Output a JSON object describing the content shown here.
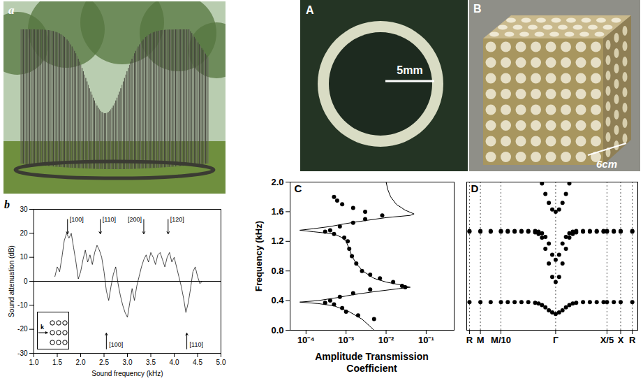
{
  "images": [
    {
      "panel": "a"
    },
    {
      "panel": "A",
      "scale_bar": "5mm"
    },
    {
      "panel": "B",
      "scale_bar": "6cm"
    }
  ],
  "chart_data": [
    {
      "panel": "b",
      "type": "line",
      "x_label": "Sound frequency (kHz)",
      "y_label": "Sound attenuation (dB)",
      "x": [
        1.45,
        1.5,
        1.55,
        1.6,
        1.65,
        1.7,
        1.75,
        1.8,
        1.85,
        1.9,
        1.95,
        2.0,
        2.05,
        2.1,
        2.15,
        2.2,
        2.25,
        2.3,
        2.35,
        2.4,
        2.45,
        2.5,
        2.55,
        2.6,
        2.65,
        2.7,
        2.75,
        2.8,
        2.85,
        2.9,
        2.95,
        3.0,
        3.05,
        3.1,
        3.15,
        3.2,
        3.25,
        3.3,
        3.35,
        3.4,
        3.45,
        3.5,
        3.55,
        3.6,
        3.65,
        3.7,
        3.75,
        3.8,
        3.85,
        3.9,
        3.95,
        4.0,
        4.05,
        4.1,
        4.15,
        4.2,
        4.25,
        4.3,
        4.35,
        4.4,
        4.45,
        4.5,
        4.55,
        4.6
      ],
      "values": [
        2,
        6,
        4,
        10,
        17,
        20,
        18,
        20,
        14,
        8,
        1,
        4,
        9,
        13,
        8,
        11,
        7,
        12,
        15,
        13,
        10,
        4,
        -4,
        -8,
        -2,
        3,
        6,
        -1,
        -6,
        -10,
        -13,
        -15,
        -9,
        -3,
        -8,
        -2,
        2,
        6,
        9,
        11,
        8,
        12,
        10,
        7,
        11,
        12,
        9,
        6,
        10,
        12,
        8,
        10,
        6,
        2,
        -2,
        -7,
        -13,
        -9,
        -3,
        4,
        6,
        2,
        -1,
        0
      ],
      "color": "#000000",
      "xlim": [
        1.0,
        5.0
      ],
      "xticks": [
        {
          "value": 1,
          "label": "1.0"
        },
        1.5,
        {
          "value": 2,
          "label": "2.0"
        },
        2.5,
        {
          "value": 3,
          "label": "3.0"
        },
        3.5,
        {
          "value": 4,
          "label": "4.0"
        },
        4.5,
        {
          "value": 5,
          "label": "5.0"
        }
      ],
      "ylim": [
        -30,
        30
      ],
      "yticks": [
        -30,
        -20,
        -10,
        0,
        10,
        20,
        30
      ],
      "hline": 0,
      "annotations": [
        {
          "text": "[100]",
          "x": 1.72,
          "direction": "down"
        },
        {
          "text": "[110]",
          "x": 2.42,
          "direction": "down"
        },
        {
          "text": "[200]",
          "x": 3.35,
          "direction": "down"
        },
        {
          "text": "[120]",
          "x": 3.87,
          "direction": "down"
        },
        {
          "text": "[100]",
          "x": 2.55,
          "direction": "up"
        },
        {
          "text": "[110]",
          "x": 4.27,
          "direction": "up"
        }
      ],
      "inset": {
        "label": "k"
      }
    },
    {
      "panel": "C",
      "type": "scatter",
      "x_label": "Amplitude Transmission Coefficient",
      "y_label": "Frequency (kHz)",
      "log": "x",
      "xlim": [
        4e-05,
        0.5
      ],
      "xticks": [
        {
          "value": 0.0001,
          "label": "10⁻⁴"
        },
        {
          "value": 0.001,
          "label": "10⁻³"
        },
        {
          "value": 0.01,
          "label": "10⁻²"
        },
        {
          "value": 0.1,
          "label": "10⁻¹"
        }
      ],
      "ylim": [
        0,
        2
      ],
      "yticks": [
        {
          "value": 0,
          "label": "0.0"
        },
        0.4,
        0.8,
        1.2,
        1.6,
        {
          "value": 2,
          "label": "2.0"
        }
      ],
      "series": [
        {
          "type": "scatter",
          "marker": "circle",
          "color": "#000000",
          "x": [
            0.0005,
            0.0006,
            0.0008,
            0.0015,
            0.003,
            0.008,
            0.003,
            0.0015,
            0.0007,
            0.0004,
            0.0003,
            0.0005,
            0.0009,
            0.0011,
            0.0012,
            0.0014,
            0.0018,
            0.0025,
            0.004,
            0.007,
            0.015,
            0.025,
            0.03,
            0.004,
            0.0015,
            0.0007,
            0.0004,
            0.0003,
            0.0005,
            0.0008,
            0.001,
            0.002,
            0.005
          ],
          "y": [
            1.8,
            1.75,
            1.7,
            1.65,
            1.6,
            1.55,
            1.5,
            1.45,
            1.4,
            1.35,
            1.33,
            1.3,
            1.25,
            1.2,
            1.1,
            1.0,
            0.9,
            0.8,
            0.75,
            0.7,
            0.65,
            0.6,
            0.58,
            0.55,
            0.5,
            0.45,
            0.4,
            0.37,
            0.35,
            0.3,
            0.25,
            0.2,
            0.15
          ]
        },
        {
          "type": "line",
          "line_style": "solid",
          "color": "#000000",
          "x": [
            0.01,
            0.011,
            0.013,
            0.018,
            0.03,
            0.05,
            0.04,
            0.01,
            0.003,
            0.001,
            0.0004,
            0.00015,
            7e-05,
            0.00015,
            0.0005,
            0.0008,
            0.001,
            0.0012,
            0.0014,
            0.0018,
            0.0026,
            0.005,
            0.01,
            0.03,
            0.04,
            0.02,
            0.005,
            0.0015,
            0.0006,
            0.0002,
            7e-05,
            0.0002,
            0.0005,
            0.0012,
            0.0025,
            0.004,
            0.005
          ],
          "y": [
            2.0,
            1.9,
            1.8,
            1.7,
            1.62,
            1.57,
            1.55,
            1.52,
            1.48,
            1.44,
            1.4,
            1.37,
            1.35,
            1.33,
            1.3,
            1.25,
            1.2,
            1.1,
            1.0,
            0.9,
            0.8,
            0.7,
            0.65,
            0.6,
            0.58,
            0.56,
            0.52,
            0.48,
            0.44,
            0.4,
            0.38,
            0.36,
            0.33,
            0.25,
            0.15,
            0.05,
            0.0
          ]
        }
      ]
    },
    {
      "panel": "D",
      "type": "scatter",
      "marker": "circle",
      "tick_labels": "x",
      "grid": "x",
      "xlim": [
        -1.3,
        1.2
      ],
      "xticks": [
        {
          "value": -1.26,
          "label": "R"
        },
        {
          "value": -1.1,
          "label": "M"
        },
        {
          "value": -0.8,
          "label": "M/10"
        },
        {
          "value": 0,
          "label": "Γ"
        },
        {
          "value": 0.75,
          "label": "X/5"
        },
        {
          "value": 0.95,
          "label": "X"
        },
        {
          "value": 1.12,
          "label": "R"
        }
      ],
      "ylim": [
        0,
        2
      ],
      "x": [
        -1.26,
        -1.1,
        -0.95,
        -0.8,
        -0.7,
        -0.6,
        -0.5,
        -0.4,
        -0.3,
        -0.25,
        -0.2,
        -0.15,
        -0.1,
        -0.05,
        0,
        0.05,
        0.1,
        0.15,
        0.2,
        0.25,
        0.3,
        0.4,
        0.5,
        0.6,
        0.7,
        0.75,
        0.85,
        0.95,
        1.12
      ],
      "series": [
        {
          "color": "#000000",
          "values": [
            0.38,
            0.38,
            0.38,
            0.38,
            0.38,
            0.38,
            0.38,
            0.38,
            0.37,
            0.36,
            0.34,
            0.31,
            0.27,
            0.24,
            0.22,
            0.24,
            0.27,
            0.31,
            0.34,
            0.36,
            0.37,
            0.38,
            0.38,
            0.38,
            0.38,
            0.38,
            0.38,
            0.38,
            0.38
          ]
        },
        {
          "color": "#000000",
          "values": [
            1.33,
            1.33,
            1.33,
            1.33,
            1.33,
            1.33,
            1.33,
            1.33,
            1.32,
            1.3,
            1.25,
            1.1,
            0.9,
            0.72,
            0.65,
            0.72,
            0.9,
            1.1,
            1.25,
            1.3,
            1.32,
            1.33,
            1.33,
            1.33,
            1.33,
            1.33,
            1.33,
            1.33,
            1.33
          ]
        },
        {
          "color": "#000000",
          "values": [
            1.34,
            1.34,
            1.34,
            1.34,
            1.34,
            1.34,
            1.34,
            1.34,
            1.34,
            1.33,
            1.31,
            1.26,
            1.17,
            1.02,
            0.95,
            1.02,
            1.17,
            1.26,
            1.31,
            1.33,
            1.34,
            1.34,
            1.34,
            1.34,
            1.34,
            1.34,
            1.34,
            1.34,
            1.34
          ]
        },
        {
          "color": "#000000",
          "values": [
            null,
            null,
            null,
            null,
            null,
            null,
            null,
            null,
            null,
            null,
            1.98,
            1.84,
            1.72,
            1.63,
            1.6,
            1.63,
            1.72,
            1.84,
            1.98,
            null,
            null,
            null,
            null,
            null,
            null,
            null,
            null,
            null,
            null
          ]
        }
      ]
    }
  ]
}
